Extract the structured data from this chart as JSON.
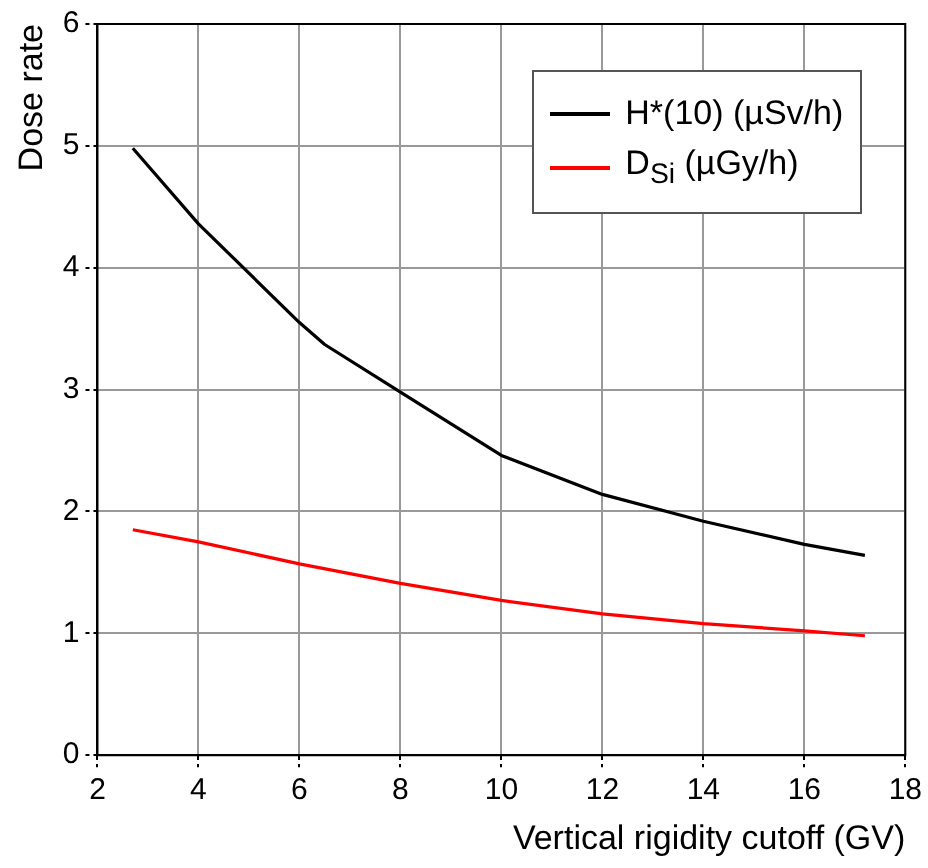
{
  "chart_data": {
    "type": "line",
    "xlabel": "Vertical rigidity cutoff (GV)",
    "ylabel": "Dose rate",
    "xlim": [
      2,
      18
    ],
    "xticks": [
      2,
      4,
      6,
      8,
      10,
      12,
      14,
      16,
      18
    ],
    "ylim": [
      0,
      6
    ],
    "yticks": [
      0,
      1,
      2,
      3,
      4,
      5,
      6
    ],
    "grid": true,
    "legend": "top right",
    "marker": "none",
    "line_style": "solid",
    "series": [
      {
        "name": "H*(10) (µSv/h)",
        "color": "#000000",
        "x": [
          2.7,
          4,
          6,
          6.5,
          8,
          10,
          12,
          14,
          16,
          17.2
        ],
        "values": [
          4.98,
          4.36,
          3.55,
          3.37,
          2.98,
          2.46,
          2.14,
          1.92,
          1.73,
          1.64
        ]
      },
      {
        "name": "D$_{Si}$ (µGy/h)",
        "color": "#ff0000",
        "x": [
          2.7,
          4,
          6,
          8,
          10,
          12,
          14,
          16,
          17.2
        ],
        "values": [
          1.85,
          1.75,
          1.57,
          1.41,
          1.27,
          1.16,
          1.08,
          1.02,
          0.98
        ]
      }
    ]
  }
}
